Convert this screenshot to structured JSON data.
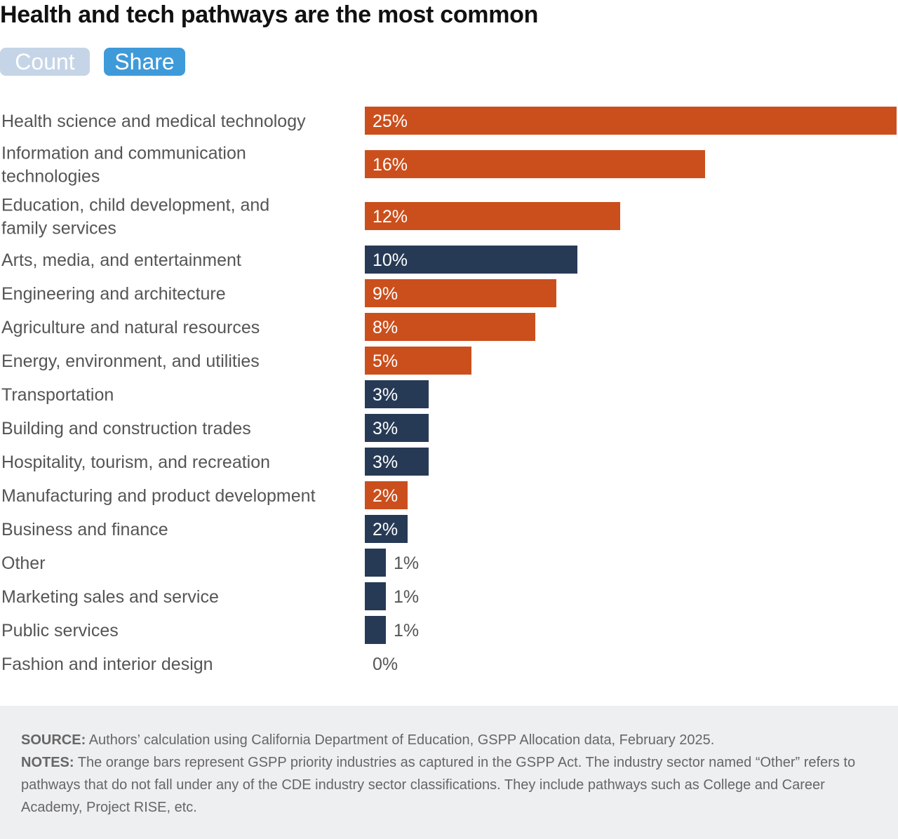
{
  "title": "Health and tech pathways are the most common",
  "toggles": {
    "count_label": "Count",
    "share_label": "Share",
    "selected": "Share"
  },
  "colors": {
    "priority": "#cb4f1c",
    "other": "#273a55",
    "label_inside": "#ffffff",
    "label_outside": "#555555"
  },
  "chart_data": {
    "type": "bar",
    "orientation": "horizontal",
    "unit": "%",
    "categories": [
      "Health science and medical technology",
      "Information and communication technologies",
      "Education, child development, and family services",
      "Arts, media, and entertainment",
      "Engineering and architecture",
      "Agriculture and natural resources",
      "Energy, environment, and utilities",
      "Transportation",
      "Building and construction trades",
      "Hospitality, tourism, and recreation",
      "Manufacturing and product development",
      "Business and finance",
      "Other",
      "Marketing sales and service",
      "Public services",
      "Fashion and interior design"
    ],
    "values": [
      25,
      16,
      12,
      10,
      9,
      8,
      5,
      3,
      3,
      3,
      2,
      2,
      1,
      1,
      1,
      0
    ],
    "value_labels": [
      "25%",
      "16%",
      "12%",
      "10%",
      "9%",
      "8%",
      "5%",
      "3%",
      "3%",
      "3%",
      "2%",
      "2%",
      "1%",
      "1%",
      "1%",
      "0%"
    ],
    "priority_industry": [
      true,
      true,
      true,
      false,
      true,
      true,
      true,
      false,
      false,
      false,
      true,
      false,
      false,
      false,
      false,
      false
    ],
    "xlim": [
      0,
      25
    ],
    "grid": false,
    "legend": "none"
  },
  "footer": {
    "source_label": "SOURCE:",
    "source_text": "Authors’ calculation using California Department of Education, GSPP Allocation data, February 2025.",
    "notes_label": "NOTES:",
    "notes_text": "The orange bars represent GSPP priority industries as captured in the GSPP Act. The industry sector named “Other” refers to pathways that do not fall under any of the CDE industry sector classifications. They include pathways such as College and Career Academy, Project RISE, etc."
  }
}
